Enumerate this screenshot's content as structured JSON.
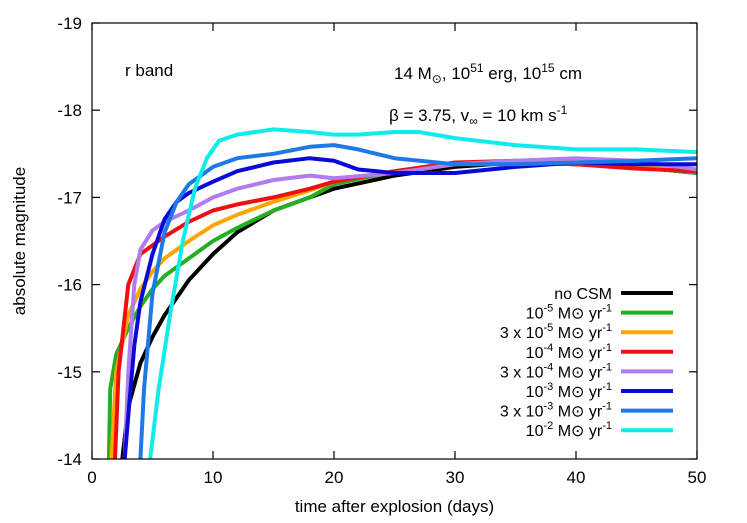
{
  "chart_data": {
    "type": "line",
    "xlabel": "time after explosion (days)",
    "ylabel": "absolute magnitude",
    "xlim": [
      0,
      50
    ],
    "ylim": [
      -14,
      -19
    ],
    "x_ticks": [
      "0",
      "10",
      "20",
      "30",
      "40",
      "50"
    ],
    "y_ticks": [
      "-14",
      "-15",
      "-16",
      "-17",
      "-18",
      "-19"
    ],
    "grid": false,
    "legend_position": "bottom-right",
    "annotations": {
      "band": "r band",
      "params_line1": "14 M⊙, 10^51 erg, 10^15 cm",
      "params_line2": "β = 3.75, v∞ = 10 km s^-1"
    },
    "series": [
      {
        "name": "no CSM",
        "legend_base": "no CSM",
        "legend_coef": "",
        "legend_exp": "",
        "color": "#000000",
        "x": [
          2.5,
          3,
          4,
          5,
          6,
          7,
          8,
          10,
          12,
          15,
          18,
          20,
          25,
          30,
          35,
          40,
          45,
          50
        ],
        "y": [
          -14.0,
          -14.6,
          -15.1,
          -15.4,
          -15.65,
          -15.85,
          -16.05,
          -16.35,
          -16.6,
          -16.85,
          -17.0,
          -17.1,
          -17.25,
          -17.35,
          -17.4,
          -17.38,
          -17.35,
          -17.28
        ]
      },
      {
        "name": "10^-5 M⊙ yr^-1",
        "legend_base": "10",
        "legend_coef": "",
        "legend_exp": "-5",
        "color": "#22b022",
        "x": [
          1.4,
          1.5,
          2,
          3,
          4,
          5,
          6,
          8,
          10,
          12,
          15,
          18,
          20,
          25,
          30,
          35,
          40,
          45,
          50
        ],
        "y": [
          -14.0,
          -14.8,
          -15.2,
          -15.5,
          -15.75,
          -15.95,
          -16.1,
          -16.3,
          -16.5,
          -16.65,
          -16.85,
          -17.0,
          -17.15,
          -17.3,
          -17.38,
          -17.4,
          -17.38,
          -17.35,
          -17.28
        ]
      },
      {
        "name": "3 x 10^-5 M⊙ yr^-1",
        "legend_base": "10",
        "legend_coef": "3 x ",
        "legend_exp": "-5",
        "color": "#ffa500",
        "x": [
          1.6,
          2,
          3,
          4,
          5,
          6,
          8,
          10,
          12,
          15,
          18,
          20,
          25,
          30,
          35,
          40,
          45,
          50
        ],
        "y": [
          -14.0,
          -15.0,
          -15.65,
          -15.95,
          -16.15,
          -16.3,
          -16.5,
          -16.68,
          -16.8,
          -16.95,
          -17.08,
          -17.18,
          -17.3,
          -17.38,
          -17.42,
          -17.4,
          -17.35,
          -17.3
        ]
      },
      {
        "name": "10^-4 M⊙ yr^-1",
        "legend_base": "10",
        "legend_coef": "",
        "legend_exp": "-4",
        "color": "#ee1010",
        "x": [
          1.9,
          2.2,
          3,
          4,
          5,
          6,
          8,
          10,
          12,
          15,
          18,
          20,
          25,
          30,
          35,
          40,
          45,
          50
        ],
        "y": [
          -14.0,
          -15.0,
          -16.0,
          -16.35,
          -16.45,
          -16.55,
          -16.72,
          -16.85,
          -16.92,
          -17.0,
          -17.1,
          -17.18,
          -17.3,
          -17.4,
          -17.42,
          -17.38,
          -17.33,
          -17.3
        ]
      },
      {
        "name": "3 x 10^-4 M⊙ yr^-1",
        "legend_base": "10",
        "legend_coef": "3 x ",
        "legend_exp": "-4",
        "color": "#b07cf0",
        "x": [
          2.7,
          3,
          3.5,
          4,
          5,
          6,
          8,
          10,
          12,
          15,
          18,
          20,
          25,
          30,
          35,
          40,
          45,
          50
        ],
        "y": [
          -14.0,
          -15.0,
          -16.0,
          -16.4,
          -16.62,
          -16.72,
          -16.85,
          -17.0,
          -17.1,
          -17.2,
          -17.25,
          -17.22,
          -17.28,
          -17.38,
          -17.42,
          -17.45,
          -17.42,
          -17.32
        ]
      },
      {
        "name": "10^-3 M⊙ yr^-1",
        "legend_base": "10",
        "legend_coef": "",
        "legend_exp": "-3",
        "color": "#0a0ad8",
        "x": [
          2.7,
          3,
          3.5,
          4,
          5,
          6,
          7,
          8,
          10,
          12,
          15,
          18,
          20,
          22,
          25,
          30,
          35,
          40,
          45,
          50
        ],
        "y": [
          -14.0,
          -14.5,
          -15.3,
          -15.8,
          -16.35,
          -16.75,
          -16.95,
          -17.05,
          -17.18,
          -17.3,
          -17.4,
          -17.45,
          -17.42,
          -17.32,
          -17.28,
          -17.28,
          -17.35,
          -17.4,
          -17.38,
          -17.38
        ]
      },
      {
        "name": "3 x 10^-3 M⊙ yr^-1",
        "legend_base": "10",
        "legend_coef": "3 x ",
        "legend_exp": "-3",
        "color": "#1e78e6",
        "x": [
          4.0,
          4.3,
          5,
          6,
          7,
          8,
          10,
          12,
          15,
          18,
          20,
          22,
          25,
          30,
          35,
          40,
          45,
          50
        ],
        "y": [
          -14.0,
          -14.8,
          -15.9,
          -16.6,
          -16.95,
          -17.15,
          -17.35,
          -17.45,
          -17.5,
          -17.58,
          -17.6,
          -17.55,
          -17.45,
          -17.38,
          -17.38,
          -17.4,
          -17.42,
          -17.45
        ]
      },
      {
        "name": "10^-2 M⊙ yr^-1",
        "legend_base": "10",
        "legend_coef": "",
        "legend_exp": "-2",
        "color": "#10ecec",
        "x": [
          4.8,
          5.5,
          6.5,
          7.5,
          8.5,
          9.5,
          10.5,
          12,
          15,
          18,
          20,
          22,
          25,
          27,
          30,
          35,
          40,
          45,
          50
        ],
        "y": [
          -14.0,
          -14.8,
          -15.7,
          -16.5,
          -17.1,
          -17.45,
          -17.65,
          -17.72,
          -17.78,
          -17.75,
          -17.72,
          -17.72,
          -17.75,
          -17.75,
          -17.68,
          -17.6,
          -17.55,
          -17.55,
          -17.52
        ]
      }
    ]
  }
}
